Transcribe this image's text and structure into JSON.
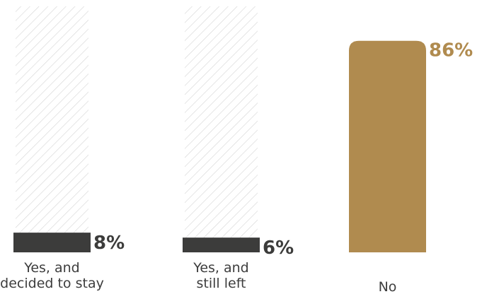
{
  "chart_data": {
    "type": "bar",
    "categories": [
      [
        "Yes, and",
        "decided to stay"
      ],
      [
        "Yes, and",
        "still left"
      ],
      [
        "No"
      ]
    ],
    "values": [
      8,
      6,
      86
    ],
    "value_labels": [
      "8%",
      "6%",
      "86%"
    ],
    "ylim": [
      0,
      100
    ],
    "title": "",
    "xlabel": "",
    "ylabel": "",
    "grid": false,
    "legend": "none",
    "colors": {
      "bar_default": "#3c3c3b",
      "bar_highlight": "#b08b4f",
      "label_default": "#3c3c3b",
      "label_highlight": "#b08b4f",
      "hatch": "#d4d4d4",
      "category_text": "#3d3d3d"
    },
    "highlight_index": 2
  }
}
